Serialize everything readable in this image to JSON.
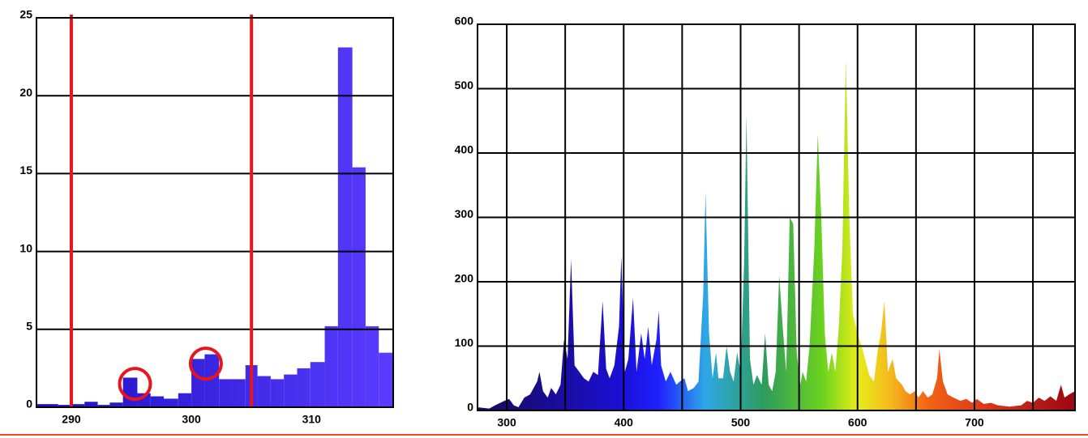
{
  "chart_data": [
    {
      "type": "histogram",
      "bins": [
        287.1,
        288.9,
        290.0,
        291.1,
        292.2,
        293.2,
        294.3,
        295.5,
        296.6,
        297.7,
        298.9,
        300.0,
        301.1,
        302.3,
        303.4,
        304.5,
        305.5,
        306.6,
        307.7,
        308.8,
        309.9,
        311.1,
        312.2,
        313.4,
        314.5,
        315.6,
        316.8
      ],
      "counts": [
        0.2,
        0.15,
        0.2,
        0.35,
        0.15,
        0.3,
        1.9,
        0.9,
        0.7,
        0.55,
        0.9,
        3.1,
        3.4,
        1.8,
        1.8,
        2.7,
        2.0,
        1.8,
        2.1,
        2.5,
        2.9,
        5.2,
        23.1,
        15.4,
        5.2,
        3.5
      ],
      "gradient_stops": [
        [
          287.1,
          "#1c0fc4"
        ],
        [
          316.8,
          "#5a3cff"
        ]
      ],
      "xlim": [
        287.1,
        316.8
      ],
      "ylim": [
        0,
        25
      ],
      "xticks": [
        290,
        300,
        310
      ],
      "yticks": [
        0,
        5,
        10,
        15,
        20,
        25
      ],
      "grid": true,
      "vlines": [
        290,
        305
      ],
      "vline_color": "#e8141e",
      "highlights": {
        "x": [
          295.3,
          301.2
        ],
        "y": [
          1.5,
          2.8
        ]
      },
      "highlight_color": "#e8141e"
    },
    {
      "type": "area",
      "x": [
        275,
        285,
        290,
        298,
        302,
        306,
        310,
        315,
        320,
        326,
        328,
        331,
        335,
        338,
        342,
        346,
        349,
        352,
        355,
        358,
        362,
        366,
        370,
        374,
        378,
        382,
        385,
        388,
        392,
        396,
        398,
        401,
        404,
        408,
        411,
        415,
        418,
        421,
        424,
        428,
        430,
        432,
        436,
        440,
        445,
        448,
        452,
        455,
        460,
        464,
        468,
        470,
        473,
        476,
        479,
        481,
        485,
        488,
        491,
        494,
        497,
        500,
        503,
        505,
        508,
        511,
        514,
        518,
        521,
        524,
        527,
        530,
        533,
        536,
        539,
        542,
        545,
        548,
        551,
        553,
        556,
        559,
        563,
        566,
        569,
        572,
        575,
        578,
        581,
        584,
        587,
        590,
        593,
        596,
        600,
        605,
        610,
        614,
        617,
        620,
        623,
        626,
        630,
        633,
        638,
        641,
        645,
        649,
        652,
        656,
        660,
        664,
        668,
        670,
        673,
        677,
        682,
        688,
        693,
        698,
        702,
        708,
        714,
        720,
        730,
        740,
        745,
        750,
        755,
        760,
        765,
        770,
        774,
        777,
        781,
        786
      ],
      "values": [
        5,
        3,
        8,
        15,
        18,
        8,
        5,
        20,
        25,
        45,
        60,
        30,
        20,
        35,
        25,
        40,
        110,
        80,
        235,
        70,
        60,
        50,
        45,
        60,
        55,
        170,
        65,
        50,
        70,
        130,
        240,
        60,
        80,
        175,
        60,
        120,
        80,
        130,
        70,
        110,
        155,
        70,
        45,
        60,
        40,
        45,
        50,
        30,
        35,
        45,
        180,
        340,
        120,
        50,
        90,
        50,
        50,
        100,
        60,
        45,
        90,
        60,
        230,
        460,
        80,
        40,
        55,
        40,
        120,
        40,
        30,
        60,
        210,
        130,
        60,
        300,
        290,
        90,
        40,
        60,
        45,
        100,
        250,
        430,
        300,
        120,
        60,
        90,
        60,
        130,
        250,
        545,
        300,
        150,
        120,
        90,
        55,
        45,
        90,
        120,
        170,
        60,
        80,
        50,
        40,
        30,
        25,
        30,
        20,
        30,
        20,
        25,
        50,
        95,
        45,
        25,
        20,
        15,
        18,
        12,
        18,
        10,
        12,
        8,
        6,
        8,
        15,
        12,
        20,
        15,
        22,
        15,
        40,
        20,
        25,
        30
      ],
      "gradient_stops": [
        [
          300,
          "#1a0a6e"
        ],
        [
          400,
          "#1a10d8"
        ],
        [
          430,
          "#2020ff"
        ],
        [
          470,
          "#2ea8e6"
        ],
        [
          520,
          "#2e9c5c"
        ],
        [
          570,
          "#6cd21e"
        ],
        [
          600,
          "#e6ee19"
        ],
        [
          630,
          "#f5b41e"
        ],
        [
          660,
          "#f06414"
        ],
        [
          700,
          "#e0401a"
        ],
        [
          780,
          "#a00a14"
        ]
      ],
      "xlim": [
        275,
        786
      ],
      "ylim": [
        0,
        600
      ],
      "xticks": [
        300,
        400,
        500,
        600,
        700
      ],
      "xminor": [
        350,
        450,
        550,
        650,
        750
      ],
      "yticks": [
        0,
        100,
        200,
        300,
        400,
        500,
        600
      ],
      "grid": true
    }
  ]
}
